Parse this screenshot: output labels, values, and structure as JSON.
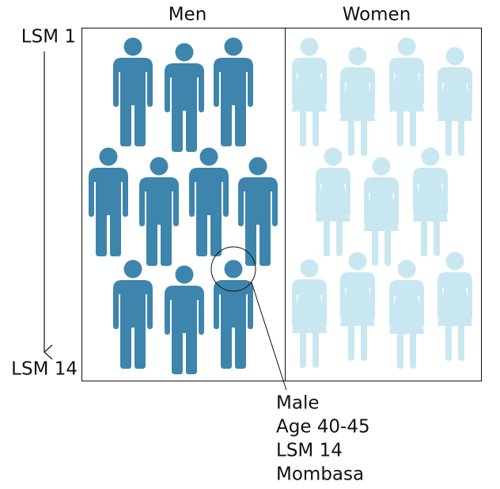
{
  "columns": [
    "Men",
    "Women"
  ],
  "axis": {
    "top": "LSM 1",
    "bottom": "LSM 14"
  },
  "callout": {
    "lines": [
      "Male",
      "Age 40-45",
      "LSM 14",
      "Mombasa"
    ]
  }
}
